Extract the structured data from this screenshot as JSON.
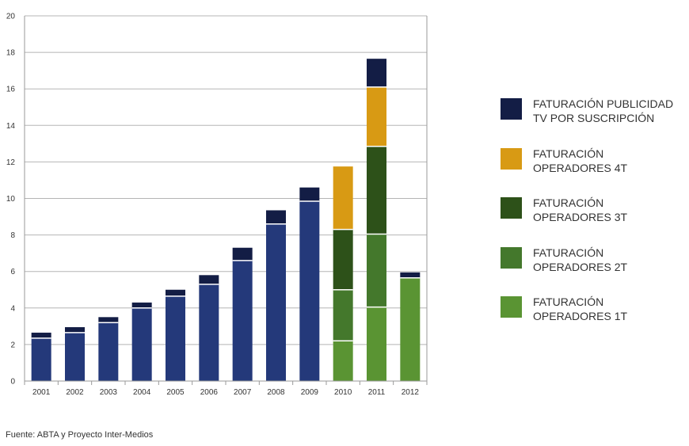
{
  "chart_data": {
    "type": "bar",
    "stacked": true,
    "categories": [
      "2001",
      "2002",
      "2003",
      "2004",
      "2005",
      "2006",
      "2007",
      "2008",
      "2009",
      "2010",
      "2011",
      "2012"
    ],
    "ylim": [
      0,
      20
    ],
    "yticks": [
      "0",
      "2",
      "4",
      "6",
      "8",
      "10",
      "12",
      "14",
      "16",
      "18",
      "20"
    ],
    "grid": true,
    "legend_position": "right",
    "series": [
      {
        "key": "base",
        "color": "#24397a",
        "values": [
          2.35,
          2.65,
          3.2,
          4.0,
          4.65,
          5.3,
          6.6,
          8.6,
          9.85,
          0,
          0,
          0
        ]
      },
      {
        "key": "op1t",
        "color": "#5a9433",
        "values": [
          0,
          0,
          0,
          0,
          0,
          0,
          0,
          0,
          0,
          2.2,
          4.05,
          5.65
        ]
      },
      {
        "key": "op2t",
        "color": "#44782c",
        "values": [
          0,
          0,
          0,
          0,
          0,
          0,
          0,
          0,
          0,
          2.8,
          4.0,
          0
        ]
      },
      {
        "key": "op3t",
        "color": "#2d5119",
        "values": [
          0,
          0,
          0,
          0,
          0,
          0,
          0,
          0,
          0,
          3.3,
          4.8,
          0
        ]
      },
      {
        "key": "op4t",
        "color": "#d89a14",
        "values": [
          0,
          0,
          0,
          0,
          0,
          0,
          0,
          0,
          0,
          3.45,
          3.25,
          0
        ]
      },
      {
        "key": "publicidad",
        "color": "#131d45",
        "values": [
          0.3,
          0.3,
          0.3,
          0.3,
          0.35,
          0.5,
          0.7,
          0.75,
          0.75,
          0,
          1.55,
          0.3
        ]
      }
    ]
  },
  "legend": [
    {
      "key": "publicidad",
      "color": "#131d45",
      "line1": "FATURACIÓN PUBLICIDAD",
      "line2": "TV POR SUSCRIPCIÓN"
    },
    {
      "key": "op4t",
      "color": "#d89a14",
      "line1": "FATURACIÓN",
      "line2": "OPERADORES 4T"
    },
    {
      "key": "op3t",
      "color": "#2d5119",
      "line1": "FATURACIÓN",
      "line2": "OPERADORES 3T"
    },
    {
      "key": "op2t",
      "color": "#44782c",
      "line1": "FATURACIÓN",
      "line2": "OPERADORES 2T"
    },
    {
      "key": "op1t",
      "color": "#5a9433",
      "line1": "FATURACIÓN",
      "line2": "OPERADORES 1T"
    }
  ],
  "source": "Fuente: ABTA y Proyecto Inter-Medios"
}
